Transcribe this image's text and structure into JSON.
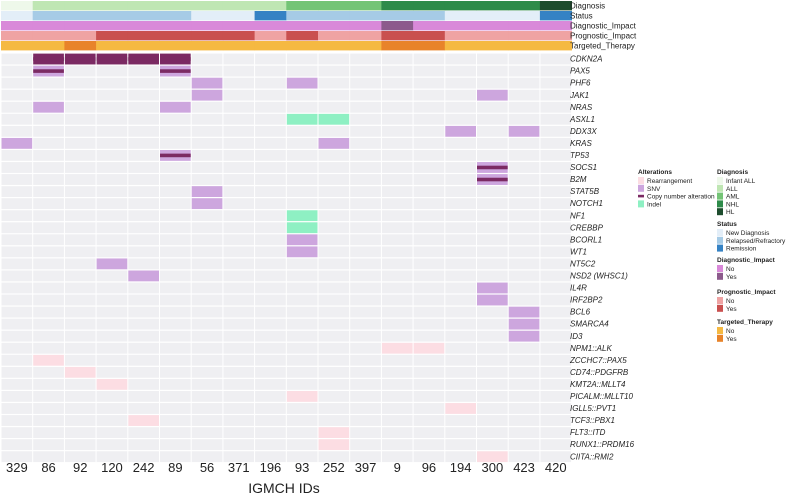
{
  "chart_data": {
    "type": "heatmap",
    "title": "",
    "xlabel": "IGMCH IDs",
    "ylabel": "",
    "samples": [
      "329",
      "86",
      "92",
      "120",
      "242",
      "89",
      "56",
      "371",
      "196",
      "93",
      "252",
      "397",
      "9",
      "96",
      "194",
      "300",
      "423",
      "420"
    ],
    "genes": [
      "CDKN2A",
      "PAX5",
      "PHF6",
      "JAK1",
      "NRAS",
      "ASXL1",
      "DDX3X",
      "KRAS",
      "TP53",
      "SOCS1",
      "B2M",
      "STAT5B",
      "NOTCH1",
      "NF1",
      "CREBBP",
      "BCORL1",
      "WT1",
      "NT5C2",
      "NSD2 (WHSC1)",
      "IL4R",
      "IRF2BP2",
      "BCL6",
      "SMARCA4",
      "ID3",
      "NPM1::ALK",
      "ZCCHC7::PAX5",
      "CD74::PDGFRB",
      "KMT2A::MLLT4",
      "PICALM::MLLT10",
      "IGLL5::PVT1",
      "TCF3::PBX1",
      "FLT3::ITD",
      "RUNX1::PRDM16",
      "CIITA::RMI2"
    ],
    "alterations": [
      {
        "gene": "CDKN2A",
        "sample": "86",
        "type": "cna"
      },
      {
        "gene": "CDKN2A",
        "sample": "92",
        "type": "cna"
      },
      {
        "gene": "CDKN2A",
        "sample": "120",
        "type": "cna"
      },
      {
        "gene": "CDKN2A",
        "sample": "242",
        "type": "cna"
      },
      {
        "gene": "CDKN2A",
        "sample": "89",
        "type": "cna"
      },
      {
        "gene": "PAX5",
        "sample": "86",
        "type": "snv+cna"
      },
      {
        "gene": "PAX5",
        "sample": "89",
        "type": "snv+cna"
      },
      {
        "gene": "PHF6",
        "sample": "56",
        "type": "snv"
      },
      {
        "gene": "PHF6",
        "sample": "93",
        "type": "snv"
      },
      {
        "gene": "JAK1",
        "sample": "56",
        "type": "snv"
      },
      {
        "gene": "JAK1",
        "sample": "300",
        "type": "snv"
      },
      {
        "gene": "NRAS",
        "sample": "86",
        "type": "snv"
      },
      {
        "gene": "NRAS",
        "sample": "89",
        "type": "snv"
      },
      {
        "gene": "ASXL1",
        "sample": "93",
        "type": "indel"
      },
      {
        "gene": "ASXL1",
        "sample": "252",
        "type": "indel"
      },
      {
        "gene": "DDX3X",
        "sample": "194",
        "type": "snv"
      },
      {
        "gene": "DDX3X",
        "sample": "423",
        "type": "snv"
      },
      {
        "gene": "KRAS",
        "sample": "329",
        "type": "snv"
      },
      {
        "gene": "KRAS",
        "sample": "252",
        "type": "snv"
      },
      {
        "gene": "TP53",
        "sample": "89",
        "type": "snv+cna"
      },
      {
        "gene": "SOCS1",
        "sample": "300",
        "type": "snv+cna"
      },
      {
        "gene": "B2M",
        "sample": "300",
        "type": "snv+cna"
      },
      {
        "gene": "STAT5B",
        "sample": "56",
        "type": "snv"
      },
      {
        "gene": "NOTCH1",
        "sample": "56",
        "type": "snv"
      },
      {
        "gene": "NF1",
        "sample": "93",
        "type": "indel"
      },
      {
        "gene": "CREBBP",
        "sample": "93",
        "type": "indel"
      },
      {
        "gene": "BCORL1",
        "sample": "93",
        "type": "snv"
      },
      {
        "gene": "WT1",
        "sample": "93",
        "type": "snv"
      },
      {
        "gene": "NT5C2",
        "sample": "120",
        "type": "snv"
      },
      {
        "gene": "NSD2 (WHSC1)",
        "sample": "242",
        "type": "snv"
      },
      {
        "gene": "IL4R",
        "sample": "300",
        "type": "snv"
      },
      {
        "gene": "IRF2BP2",
        "sample": "300",
        "type": "snv"
      },
      {
        "gene": "BCL6",
        "sample": "423",
        "type": "snv"
      },
      {
        "gene": "SMARCA4",
        "sample": "423",
        "type": "snv"
      },
      {
        "gene": "ID3",
        "sample": "423",
        "type": "snv"
      },
      {
        "gene": "NPM1::ALK",
        "sample": "9",
        "type": "rearr"
      },
      {
        "gene": "NPM1::ALK",
        "sample": "96",
        "type": "rearr"
      },
      {
        "gene": "ZCCHC7::PAX5",
        "sample": "86",
        "type": "rearr"
      },
      {
        "gene": "CD74::PDGFRB",
        "sample": "92",
        "type": "rearr"
      },
      {
        "gene": "KMT2A::MLLT4",
        "sample": "120",
        "type": "rearr"
      },
      {
        "gene": "PICALM::MLLT10",
        "sample": "93",
        "type": "rearr"
      },
      {
        "gene": "IGLL5::PVT1",
        "sample": "194",
        "type": "rearr"
      },
      {
        "gene": "TCF3::PBX1",
        "sample": "242",
        "type": "rearr"
      },
      {
        "gene": "FLT3::ITD",
        "sample": "252",
        "type": "rearr"
      },
      {
        "gene": "RUNX1::PRDM16",
        "sample": "252",
        "type": "rearr"
      },
      {
        "gene": "CIITA::RMI2",
        "sample": "300",
        "type": "rearr"
      }
    ],
    "annotations": [
      {
        "name": "Diagnosis",
        "values": [
          "Infant ALL",
          "ALL",
          "ALL",
          "ALL",
          "ALL",
          "ALL",
          "ALL",
          "ALL",
          "ALL",
          "AML",
          "AML",
          "AML",
          "NHL",
          "NHL",
          "NHL",
          "NHL",
          "NHL",
          "HL"
        ]
      },
      {
        "name": "Status",
        "values": [
          "New Diagnosis",
          "Relapsed/Refractory",
          "Relapsed/Refractory",
          "Relapsed/Refractory",
          "Relapsed/Refractory",
          "Relapsed/Refractory",
          "New Diagnosis",
          "New Diagnosis",
          "Remission",
          "Relapsed/Refractory",
          "Relapsed/Refractory",
          "Relapsed/Refractory",
          "Relapsed/Refractory",
          "Relapsed/Refractory",
          "New Diagnosis",
          "New Diagnosis",
          "New Diagnosis",
          "Remission"
        ]
      },
      {
        "name": "Diagnostic_Impact",
        "values": [
          "No",
          "No",
          "No",
          "No",
          "No",
          "No",
          "No",
          "No",
          "No",
          "No",
          "No",
          "No",
          "Yes",
          "No",
          "No",
          "No",
          "No",
          "No"
        ]
      },
      {
        "name": "Prognostic_Impact",
        "values": [
          "No",
          "No",
          "No",
          "Yes",
          "Yes",
          "Yes",
          "Yes",
          "Yes",
          "No",
          "Yes",
          "No",
          "No",
          "Yes",
          "Yes",
          "No",
          "No",
          "No",
          "No"
        ]
      },
      {
        "name": "Targeted_Therapy",
        "values": [
          "No",
          "No",
          "Yes",
          "No",
          "No",
          "No",
          "No",
          "No",
          "No",
          "No",
          "No",
          "No",
          "Yes",
          "Yes",
          "No",
          "No",
          "No",
          "No"
        ]
      }
    ],
    "legends": [
      {
        "title": "Alterations",
        "items": [
          {
            "label": "Rearrangement",
            "key": "rearr",
            "color": "#fcdde3"
          },
          {
            "label": "SNV",
            "key": "snv",
            "color": "#cda6de"
          },
          {
            "label": "Copy number alteration",
            "key": "cna",
            "color": "#7b2a63"
          },
          {
            "label": "Indel",
            "key": "indel",
            "color": "#8ef0c3"
          }
        ]
      },
      {
        "title": "Diagnosis",
        "items": [
          {
            "label": "Infant ALL",
            "color": "#eef8ea"
          },
          {
            "label": "ALL",
            "color": "#bfe6b3"
          },
          {
            "label": "AML",
            "color": "#74c476"
          },
          {
            "label": "NHL",
            "color": "#2e8b4a"
          },
          {
            "label": "HL",
            "color": "#1e4d2e"
          }
        ]
      },
      {
        "title": "Status",
        "items": [
          {
            "label": "New Diagnosis",
            "color": "#e3eef8"
          },
          {
            "label": "Relapsed/Refractory",
            "color": "#a6cbe6"
          },
          {
            "label": "Remission",
            "color": "#3582c4"
          }
        ]
      },
      {
        "title": "Diagnostic_Impact",
        "items": [
          {
            "label": "No",
            "color": "#d989d9"
          },
          {
            "label": "Yes",
            "color": "#8c5a8c"
          }
        ]
      },
      {
        "title": "Prognostic_Impact",
        "items": [
          {
            "label": "No",
            "color": "#efa3a3"
          },
          {
            "label": "Yes",
            "color": "#c9504f"
          }
        ]
      },
      {
        "title": "Targeted_Therapy",
        "items": [
          {
            "label": "No",
            "color": "#f5b942"
          },
          {
            "label": "Yes",
            "color": "#e8832a"
          }
        ]
      }
    ],
    "cell_background": "#efeff2"
  }
}
